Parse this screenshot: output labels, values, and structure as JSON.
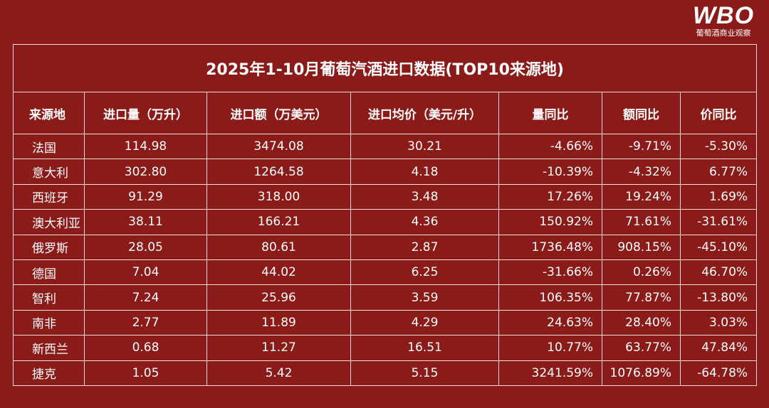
{
  "logo": {
    "mark": "WBO",
    "tagline": "葡萄酒商业观察"
  },
  "table": {
    "title": "2025年1-10月葡萄汽酒进口数据(TOP10来源地)",
    "header": [
      "来源地",
      "进口量（万升）",
      "进口额（万美元）",
      "进口均价（美元/升）",
      "量同比",
      "额同比",
      "价同比"
    ],
    "rows": [
      [
        "法国",
        "114.98",
        "3474.08",
        "30.21",
        "-4.66%",
        "-9.71%",
        "-5.30%"
      ],
      [
        "意大利",
        "302.80",
        "1264.58",
        "4.18",
        "-10.39%",
        "-4.32%",
        "6.77%"
      ],
      [
        "西班牙",
        "91.29",
        "318.00",
        "3.48",
        "17.26%",
        "19.24%",
        "1.69%"
      ],
      [
        "澳大利亚",
        "38.11",
        "166.21",
        "4.36",
        "150.92%",
        "71.61%",
        "-31.61%"
      ],
      [
        "俄罗斯",
        "28.05",
        "80.61",
        "2.87",
        "1736.48%",
        "908.15%",
        "-45.10%"
      ],
      [
        "德国",
        "7.04",
        "44.02",
        "6.25",
        "-31.66%",
        "0.26%",
        "46.70%"
      ],
      [
        "智利",
        "7.24",
        "25.96",
        "3.59",
        "106.35%",
        "77.87%",
        "-13.80%"
      ],
      [
        "南非",
        "2.77",
        "11.89",
        "4.29",
        "24.63%",
        "28.40%",
        "3.03%"
      ],
      [
        "新西兰",
        "0.68",
        "11.27",
        "16.51",
        "10.77%",
        "63.77%",
        "47.84%"
      ],
      [
        "捷克",
        "1.05",
        "5.42",
        "5.15",
        "3241.59%",
        "1076.89%",
        "-64.78%"
      ]
    ]
  }
}
